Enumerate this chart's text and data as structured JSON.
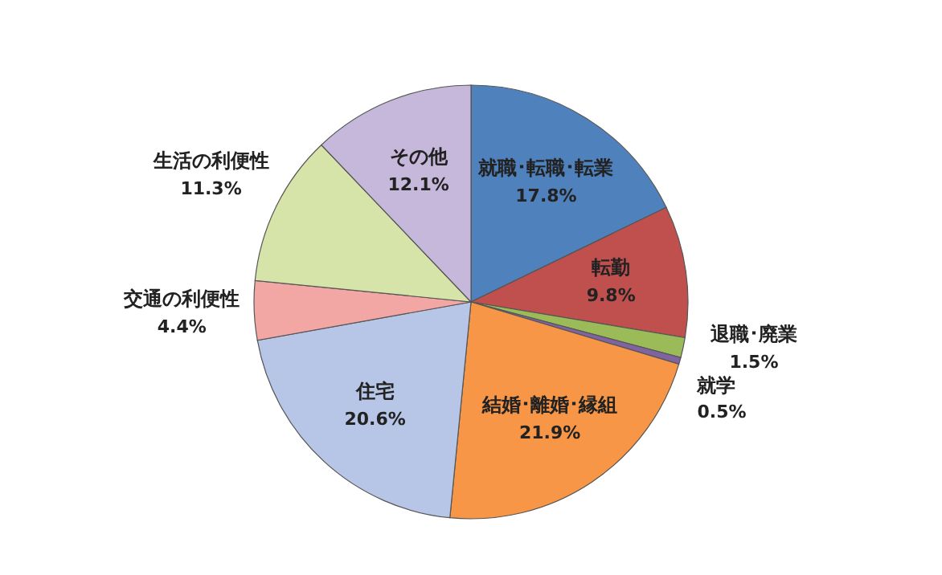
{
  "chart_data": {
    "type": "pie",
    "categories": [
      "就職･転職･転業",
      "転勤",
      "退職･廃業",
      "就学",
      "結婚･離婚･縁組",
      "住宅",
      "交通の利便性",
      "生活の利便性",
      "その他"
    ],
    "values": [
      17.8,
      9.8,
      1.5,
      0.5,
      21.9,
      20.6,
      4.4,
      11.3,
      12.1
    ],
    "value_labels": [
      "17.8%",
      "9.8%",
      "1.5%",
      "0.5%",
      "21.9%",
      "20.6%",
      "4.4%",
      "11.3%",
      "12.1%"
    ],
    "colors": [
      "#4f81bd",
      "#c0504d",
      "#9bbb59",
      "#8064a2",
      "#f79646",
      "#b7c5e6",
      "#f2a7a5",
      "#d7e4a9",
      "#c6b8da"
    ]
  }
}
